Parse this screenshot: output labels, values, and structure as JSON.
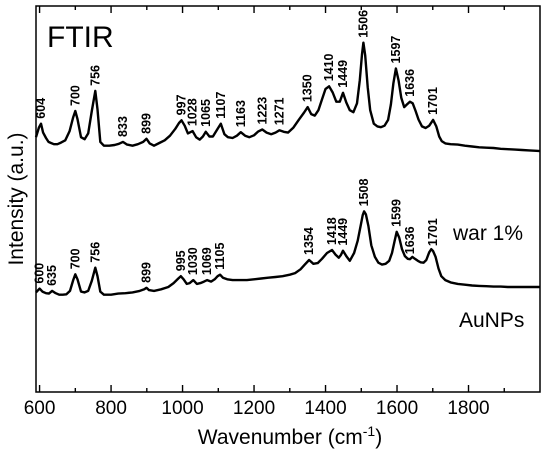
{
  "chart_data": {
    "type": "line",
    "title": "FTIR",
    "xlabel": "Wavenumber (cm",
    "xlabel_sup": "-1",
    "xlabel_end": ")",
    "ylabel": "Intensity (a.u.)",
    "xlim": [
      590,
      2000
    ],
    "ylim": [
      0,
      1
    ],
    "x_ticks": [
      600,
      800,
      1000,
      1200,
      1400,
      1600,
      1800
    ],
    "x_minor_step": 100,
    "yticks_shown": false,
    "grid": false,
    "legend": "none",
    "series": [
      {
        "name": "war 1%",
        "x": [
          590,
          598,
          604,
          610,
          618,
          625,
          632,
          640,
          650,
          660,
          672,
          684,
          694,
          700,
          706,
          716,
          726,
          736,
          746,
          756,
          762,
          770,
          780,
          795,
          810,
          822,
          833,
          845,
          860,
          875,
          890,
          899,
          908,
          920,
          935,
          950,
          965,
          980,
          990,
          997,
          1006,
          1015,
          1028,
          1038,
          1048,
          1057,
          1065,
          1075,
          1085,
          1097,
          1107,
          1117,
          1127,
          1140,
          1152,
          1163,
          1175,
          1187,
          1200,
          1212,
          1223,
          1235,
          1248,
          1260,
          1271,
          1283,
          1295,
          1310,
          1325,
          1340,
          1350,
          1360,
          1370,
          1380,
          1390,
          1400,
          1410,
          1420,
          1430,
          1440,
          1449,
          1458,
          1468,
          1478,
          1488,
          1496,
          1502,
          1506,
          1511,
          1518,
          1525,
          1535,
          1545,
          1555,
          1565,
          1575,
          1583,
          1590,
          1597,
          1604,
          1612,
          1620,
          1628,
          1636,
          1644,
          1652,
          1660,
          1670,
          1680,
          1690,
          1701,
          1710,
          1718,
          1725,
          1735,
          1750,
          1770,
          1790,
          1810,
          1830,
          1850,
          1870,
          1890,
          1910,
          1930,
          1950,
          1970,
          1990,
          2000
        ],
        "y": [
          0.66,
          0.685,
          0.695,
          0.672,
          0.658,
          0.648,
          0.645,
          0.642,
          0.642,
          0.646,
          0.652,
          0.676,
          0.712,
          0.728,
          0.707,
          0.66,
          0.655,
          0.67,
          0.728,
          0.78,
          0.732,
          0.648,
          0.638,
          0.638,
          0.64,
          0.643,
          0.648,
          0.641,
          0.638,
          0.642,
          0.648,
          0.656,
          0.644,
          0.638,
          0.645,
          0.652,
          0.664,
          0.682,
          0.697,
          0.704,
          0.69,
          0.67,
          0.676,
          0.66,
          0.654,
          0.662,
          0.674,
          0.662,
          0.662,
          0.68,
          0.695,
          0.668,
          0.66,
          0.658,
          0.664,
          0.673,
          0.664,
          0.66,
          0.665,
          0.675,
          0.68,
          0.672,
          0.668,
          0.672,
          0.678,
          0.674,
          0.672,
          0.685,
          0.705,
          0.724,
          0.738,
          0.72,
          0.716,
          0.73,
          0.758,
          0.785,
          0.792,
          0.776,
          0.752,
          0.752,
          0.775,
          0.75,
          0.73,
          0.725,
          0.748,
          0.808,
          0.875,
          0.905,
          0.872,
          0.79,
          0.73,
          0.695,
          0.688,
          0.686,
          0.69,
          0.705,
          0.745,
          0.8,
          0.838,
          0.808,
          0.762,
          0.738,
          0.745,
          0.752,
          0.748,
          0.728,
          0.706,
          0.688,
          0.684,
          0.69,
          0.705,
          0.688,
          0.662,
          0.65,
          0.644,
          0.642,
          0.641,
          0.638,
          0.636,
          0.634,
          0.633,
          0.632,
          0.63,
          0.629,
          0.628,
          0.627,
          0.626,
          0.625,
          0.624
        ]
      },
      {
        "name": "AuNPs",
        "x": [
          590,
          600,
          608,
          618,
          626,
          635,
          645,
          655,
          665,
          675,
          685,
          694,
          700,
          706,
          716,
          726,
          736,
          746,
          756,
          762,
          770,
          780,
          800,
          820,
          840,
          860,
          880,
          893,
          899,
          906,
          920,
          940,
          960,
          975,
          988,
          995,
          1003,
          1012,
          1020,
          1030,
          1040,
          1050,
          1060,
          1069,
          1080,
          1090,
          1098,
          1105,
          1113,
          1125,
          1140,
          1160,
          1180,
          1200,
          1220,
          1240,
          1260,
          1280,
          1300,
          1315,
          1330,
          1342,
          1354,
          1366,
          1378,
          1390,
          1404,
          1418,
          1428,
          1437,
          1443,
          1449,
          1458,
          1468,
          1480,
          1490,
          1498,
          1504,
          1508,
          1513,
          1520,
          1528,
          1538,
          1548,
          1558,
          1568,
          1578,
          1586,
          1593,
          1599,
          1606,
          1614,
          1622,
          1630,
          1636,
          1643,
          1650,
          1658,
          1666,
          1674,
          1682,
          1690,
          1696,
          1701,
          1708,
          1716,
          1724,
          1735,
          1750,
          1770,
          1790,
          1810,
          1830,
          1850,
          1870,
          1890,
          1910,
          1930,
          1950,
          1970,
          1990,
          2000
        ],
        "y": [
          0.258,
          0.268,
          0.26,
          0.256,
          0.255,
          0.262,
          0.256,
          0.252,
          0.252,
          0.253,
          0.262,
          0.29,
          0.305,
          0.292,
          0.26,
          0.258,
          0.262,
          0.288,
          0.322,
          0.3,
          0.26,
          0.252,
          0.252,
          0.255,
          0.256,
          0.258,
          0.262,
          0.266,
          0.27,
          0.264,
          0.262,
          0.266,
          0.272,
          0.282,
          0.294,
          0.3,
          0.292,
          0.28,
          0.282,
          0.29,
          0.28,
          0.282,
          0.286,
          0.29,
          0.286,
          0.292,
          0.3,
          0.304,
          0.296,
          0.292,
          0.29,
          0.29,
          0.29,
          0.292,
          0.294,
          0.296,
          0.298,
          0.3,
          0.304,
          0.308,
          0.318,
          0.33,
          0.342,
          0.332,
          0.334,
          0.345,
          0.36,
          0.368,
          0.356,
          0.348,
          0.355,
          0.366,
          0.352,
          0.34,
          0.36,
          0.392,
          0.43,
          0.458,
          0.468,
          0.46,
          0.43,
          0.38,
          0.35,
          0.335,
          0.33,
          0.332,
          0.34,
          0.36,
          0.39,
          0.415,
          0.4,
          0.37,
          0.352,
          0.345,
          0.344,
          0.35,
          0.345,
          0.34,
          0.336,
          0.335,
          0.342,
          0.362,
          0.37,
          0.365,
          0.35,
          0.32,
          0.3,
          0.29,
          0.284,
          0.28,
          0.278,
          0.276,
          0.275,
          0.274,
          0.273,
          0.273,
          0.272,
          0.272,
          0.272,
          0.272,
          0.272,
          0.272
        ]
      }
    ],
    "peak_labels": [
      {
        "series": 0,
        "text": "604",
        "x": 604
      },
      {
        "series": 0,
        "text": "700",
        "x": 700
      },
      {
        "series": 0,
        "text": "756",
        "x": 756
      },
      {
        "series": 0,
        "text": "833",
        "x": 833
      },
      {
        "series": 0,
        "text": "899",
        "x": 899
      },
      {
        "series": 0,
        "text": "997",
        "x": 997
      },
      {
        "series": 0,
        "text": "1028",
        "x": 1028
      },
      {
        "series": 0,
        "text": "1065",
        "x": 1065
      },
      {
        "series": 0,
        "text": "1107",
        "x": 1107
      },
      {
        "series": 0,
        "text": "1163",
        "x": 1163
      },
      {
        "series": 0,
        "text": "1223",
        "x": 1223
      },
      {
        "series": 0,
        "text": "1271",
        "x": 1271
      },
      {
        "series": 0,
        "text": "1350",
        "x": 1350
      },
      {
        "series": 0,
        "text": "1410",
        "x": 1410
      },
      {
        "series": 0,
        "text": "1449",
        "x": 1449
      },
      {
        "series": 0,
        "text": "1506",
        "x": 1506
      },
      {
        "series": 0,
        "text": "1597",
        "x": 1597
      },
      {
        "series": 0,
        "text": "1636",
        "x": 1636
      },
      {
        "series": 0,
        "text": "1701",
        "x": 1701
      },
      {
        "series": 1,
        "text": "600",
        "x": 600
      },
      {
        "series": 1,
        "text": "635",
        "x": 635
      },
      {
        "series": 1,
        "text": "700",
        "x": 700
      },
      {
        "series": 1,
        "text": "756",
        "x": 756
      },
      {
        "series": 1,
        "text": "899",
        "x": 899
      },
      {
        "series": 1,
        "text": "995",
        "x": 995
      },
      {
        "series": 1,
        "text": "1030",
        "x": 1030
      },
      {
        "series": 1,
        "text": "1069",
        "x": 1069
      },
      {
        "series": 1,
        "text": "1105",
        "x": 1105
      },
      {
        "series": 1,
        "text": "1354",
        "x": 1354
      },
      {
        "series": 1,
        "text": "1418",
        "x": 1418
      },
      {
        "series": 1,
        "text": "1449",
        "x": 1449
      },
      {
        "series": 1,
        "text": "1508",
        "x": 1508
      },
      {
        "series": 1,
        "text": "1599",
        "x": 1599
      },
      {
        "series": 1,
        "text": "1636",
        "x": 1636
      },
      {
        "series": 1,
        "text": "1701",
        "x": 1701
      }
    ]
  }
}
